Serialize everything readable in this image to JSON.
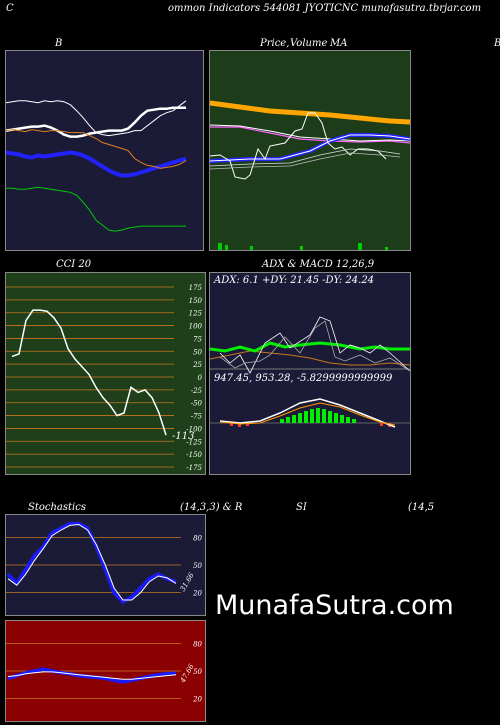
{
  "header": {
    "left_letter": "C",
    "title": "ommon  Indicators 544081 JYOTICNC munafasutra.tbrjar.com"
  },
  "bollinger": {
    "label": "B"
  },
  "price_panel": {
    "label_price": "Price,",
    "label_volume": "Volume",
    "label_ma": "MA",
    "edge_letter": "B"
  },
  "cci": {
    "label": "CCI 20",
    "last_value_label": "-113"
  },
  "adx_macd": {
    "label": "ADX  & MACD 12,26,9",
    "adx_text": "ADX: 6.1 +DY: 21.45 -DY: 24.24",
    "macd_text": "947.45,  953.28,  -5.8299999999999"
  },
  "stochastics": {
    "label": "Stochastics",
    "params": "(14,3,3) & R",
    "last_value_label": "31.66"
  },
  "rsi": {
    "label": "SI",
    "params": "(14,5",
    "last_value_label": "47.66"
  },
  "watermark": "MunafaSutra.com",
  "colors": {
    "bollinger_bg": "#1b1b38",
    "price_bg": "#1d3d1a",
    "cci_bg": "#1e3f1a",
    "adx_bg": "#1b1b38",
    "stoch_bg": "#1b1b38",
    "rsi_bg": "#8b0000",
    "grid_orange": "#c8781e",
    "axis_text": "#ffffff"
  },
  "chart_data": [
    {
      "type": "line",
      "title": "B",
      "series": [
        {
          "values": [
            62,
            62,
            61,
            61,
            62,
            63,
            62,
            61,
            60,
            59,
            58,
            55,
            48,
            40,
            30,
            25,
            20,
            19,
            20,
            22,
            23,
            24,
            24,
            24,
            24,
            24,
            24,
            24,
            24
          ]
        },
        {
          "values": [
            98,
            97,
            96,
            94,
            93,
            95,
            94,
            95,
            96,
            97,
            98,
            97,
            95,
            92,
            88,
            84,
            80,
            77,
            75,
            75,
            76,
            78,
            80,
            82,
            84,
            86,
            88,
            90,
            92
          ]
        },
        {
          "values": [
            120,
            121,
            122,
            123,
            124,
            124,
            125,
            123,
            120,
            116,
            114,
            114,
            115,
            117,
            118,
            119,
            120,
            120,
            120,
            122,
            128,
            135,
            140,
            141,
            142,
            142,
            143,
            143,
            143
          ]
        },
        {
          "values": [
            120,
            121,
            120,
            119,
            121,
            120,
            119,
            120,
            120,
            119,
            118,
            118,
            118,
            115,
            112,
            108,
            106,
            104,
            102,
            100,
            92,
            88,
            85,
            84,
            82,
            83,
            84,
            86,
            90
          ]
        },
        {
          "values": [
            148,
            149,
            150,
            150,
            149,
            148,
            150,
            149,
            150,
            149,
            146,
            140,
            133,
            125,
            118,
            116,
            115,
            116,
            117,
            118,
            120,
            120,
            125,
            130,
            135,
            138,
            140,
            145,
            150
          ]
        }
      ]
    },
    {
      "type": "bar",
      "title": "CCI 20",
      "ylim": [
        -175,
        175
      ],
      "y_ticks": [
        175,
        150,
        125,
        100,
        75,
        50,
        25,
        0,
        -25,
        -50,
        -75,
        -100,
        -125,
        -150,
        -175
      ],
      "series": [
        {
          "values": [
            40,
            45,
            110,
            130,
            130,
            128,
            115,
            95,
            55,
            35,
            20,
            5,
            -20,
            -40,
            -55,
            -75,
            -70,
            -20,
            -30,
            -25,
            -40,
            -70,
            -113
          ]
        }
      ]
    },
    {
      "type": "line",
      "title": "ADX  & MACD 12,26,9",
      "series": [
        {
          "values": [
            21,
            22,
            24,
            23,
            25,
            22,
            24,
            25,
            23,
            22,
            24,
            25,
            23,
            24,
            25,
            26,
            25,
            24,
            23,
            22,
            23,
            24,
            21,
            20,
            21,
            22,
            23,
            21,
            20,
            21.45
          ]
        },
        {
          "values": [
            22,
            23,
            22,
            21,
            22,
            23,
            24,
            25,
            26,
            25,
            24,
            23,
            22,
            21,
            20,
            19,
            20,
            21,
            22,
            23,
            24,
            25,
            26,
            24,
            23,
            24,
            25,
            24,
            23,
            24.24
          ]
        },
        {
          "values": [
            947.45
          ]
        },
        {
          "values": [
            953.28
          ]
        },
        {
          "values": [
            -5.83
          ]
        }
      ]
    },
    {
      "type": "line",
      "title": "Stochastics",
      "ylim": [
        0,
        100
      ],
      "y_ticks": [
        80,
        50,
        20
      ],
      "series": [
        {
          "values": [
            40,
            30,
            45,
            60,
            70,
            85,
            90,
            95,
            95,
            90,
            70,
            45,
            20,
            10,
            15,
            25,
            35,
            40,
            35,
            31.66
          ]
        },
        {
          "values": [
            35,
            28,
            40,
            55,
            68,
            82,
            88,
            93,
            94,
            88,
            72,
            50,
            25,
            12,
            12,
            20,
            32,
            38,
            36,
            30
          ]
        }
      ]
    },
    {
      "type": "line",
      "title": "SI",
      "ylim": [
        0,
        100
      ],
      "y_ticks": [
        80,
        50,
        20
      ],
      "series": [
        {
          "values": [
            42,
            45,
            48,
            50,
            52,
            50,
            48,
            47,
            45,
            44,
            43,
            42,
            40,
            38,
            40,
            42,
            44,
            46,
            47,
            47.66
          ]
        },
        {
          "values": [
            44,
            45,
            47,
            48,
            49,
            49,
            48,
            47,
            46,
            45,
            44,
            43,
            42,
            41,
            41,
            42,
            43,
            44,
            45,
            46
          ]
        }
      ]
    }
  ]
}
